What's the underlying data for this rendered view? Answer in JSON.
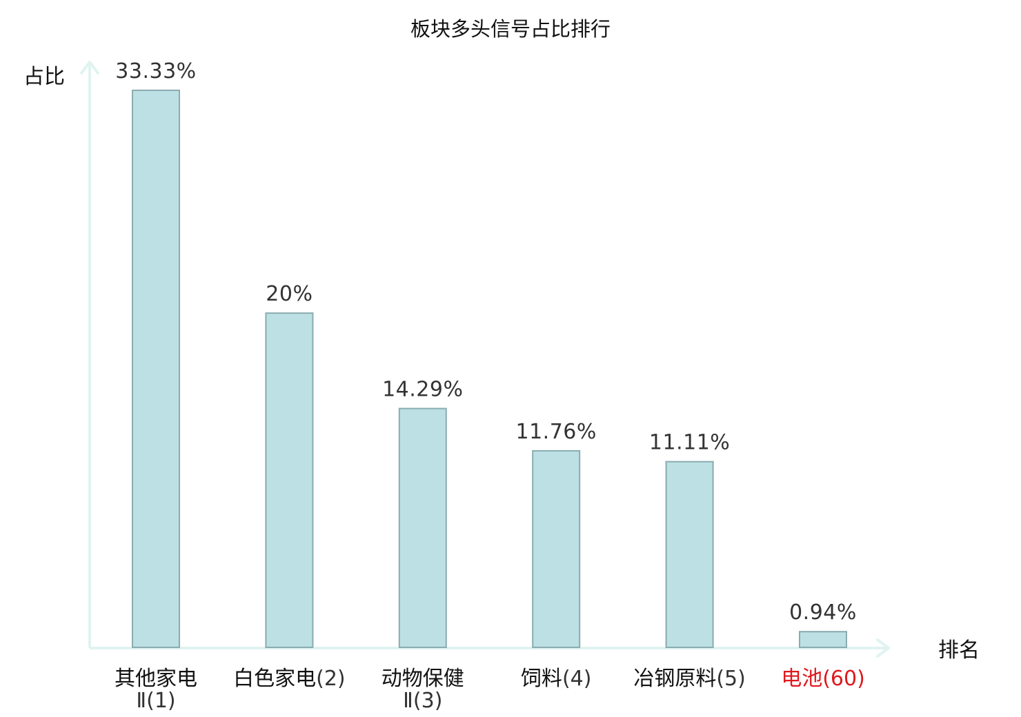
{
  "chart_data": {
    "type": "bar",
    "title": "板块多头信号占比排行",
    "ylabel": "占比",
    "xlabel": "排名",
    "ylim": [
      0,
      33.33
    ],
    "value_unit": "%",
    "grid": false,
    "highlight_color": "#e0181c",
    "bar_color": "#bce0e3",
    "bar_edge_color": "#8aabaf",
    "axis_color": "#e0f3f1",
    "categories": [
      {
        "name": "其他家电",
        "rank": "Ⅱ(1)",
        "value": 33.33,
        "label": "33.33%",
        "highlight": false,
        "wrap": true
      },
      {
        "name": "白色家电",
        "rank": "(2)",
        "value": 20,
        "label": "20%",
        "highlight": false,
        "wrap": false
      },
      {
        "name": "动物保健",
        "rank": "Ⅱ(3)",
        "value": 14.29,
        "label": "14.29%",
        "highlight": false,
        "wrap": true
      },
      {
        "name": "饲料",
        "rank": "(4)",
        "value": 11.76,
        "label": "11.76%",
        "highlight": false,
        "wrap": false
      },
      {
        "name": "冶钢原料",
        "rank": "(5)",
        "value": 11.11,
        "label": "11.11%",
        "highlight": false,
        "wrap": false
      },
      {
        "name": "电池",
        "rank": "(60)",
        "value": 0.94,
        "label": "0.94%",
        "highlight": true,
        "wrap": false
      }
    ]
  }
}
